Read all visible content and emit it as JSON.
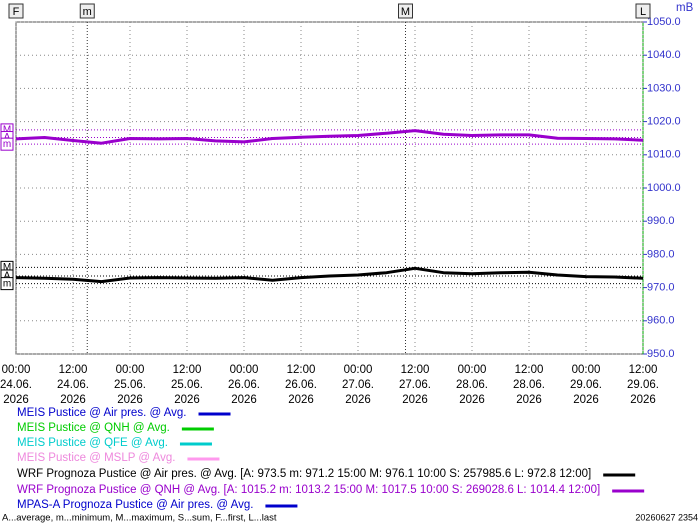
{
  "chart_data": {
    "type": "line",
    "y_unit": "mB",
    "ylim": [
      950,
      1050
    ],
    "yticks": [
      {
        "value": 950,
        "label": "950.0"
      },
      {
        "value": 960,
        "label": "960.0"
      },
      {
        "value": 970,
        "label": "970.0"
      },
      {
        "value": 980,
        "label": "980.0"
      },
      {
        "value": 990,
        "label": "990.0"
      },
      {
        "value": 1000,
        "label": "1000.0"
      },
      {
        "value": 1010,
        "label": "1010.0"
      },
      {
        "value": 1020,
        "label": "1020.0"
      },
      {
        "value": 1030,
        "label": "1030.0"
      },
      {
        "value": 1040,
        "label": "1040.0"
      },
      {
        "value": 1050,
        "label": "1050.0"
      }
    ],
    "grid": true,
    "xlim": [
      "24.06. 00:00",
      "29.06. 12:00"
    ],
    "xticks": [
      {
        "value": "24.06. 00:00",
        "label": [
          "00:00",
          "24.06.",
          "2026"
        ]
      },
      {
        "value": "24.06. 12:00",
        "label": [
          "12:00",
          "24.06.",
          "2026"
        ]
      },
      {
        "value": "25.06. 00:00",
        "label": [
          "00:00",
          "25.06.",
          "2026"
        ]
      },
      {
        "value": "25.06. 12:00",
        "label": [
          "12:00",
          "25.06.",
          "2026"
        ]
      },
      {
        "value": "26.06. 00:00",
        "label": [
          "00:00",
          "26.06.",
          "2026"
        ]
      },
      {
        "value": "26.06. 12:00",
        "label": [
          "12:00",
          "26.06.",
          "2026"
        ]
      },
      {
        "value": "27.06. 00:00",
        "label": [
          "00:00",
          "27.06.",
          "2026"
        ]
      },
      {
        "value": "27.06. 12:00",
        "label": [
          "12:00",
          "27.06.",
          "2026"
        ]
      },
      {
        "value": "28.06. 00:00",
        "label": [
          "00:00",
          "28.06.",
          "2026"
        ]
      },
      {
        "value": "28.06. 12:00",
        "label": [
          "12:00",
          "28.06.",
          "2026"
        ]
      },
      {
        "value": "29.06. 00:00",
        "label": [
          "00:00",
          "29.06.",
          "2026"
        ]
      },
      {
        "value": "29.06. 12:00",
        "label": [
          "12:00",
          "29.06.",
          "2026"
        ]
      }
    ],
    "x": [
      "24.06. 00:00",
      "24.06. 06:00",
      "24.06. 12:00",
      "24.06. 18:00",
      "25.06. 00:00",
      "25.06. 06:00",
      "25.06. 12:00",
      "25.06. 18:00",
      "26.06. 00:00",
      "26.06. 06:00",
      "26.06. 12:00",
      "26.06. 18:00",
      "27.06. 00:00",
      "27.06. 06:00",
      "27.06. 12:00",
      "27.06. 18:00",
      "28.06. 00:00",
      "28.06. 06:00",
      "28.06. 12:00",
      "28.06. 18:00",
      "29.06. 00:00",
      "29.06. 06:00",
      "29.06. 12:00"
    ],
    "top_markers": [
      {
        "label": "F",
        "time": "24.06. 00:00"
      },
      {
        "label": "m",
        "time": "24.06. 15:00"
      },
      {
        "label": "M",
        "time": "27.06. 10:00"
      },
      {
        "label": "L",
        "time": "29.06. 12:00"
      }
    ],
    "series": [
      {
        "name": "MEIS Pustice @ Air pres. @ Avg.",
        "color": "#0000cc",
        "values": [
          null,
          null,
          null,
          null,
          null,
          null,
          null,
          null,
          null,
          null,
          null,
          null,
          null,
          null,
          null,
          null,
          null,
          null,
          null,
          null,
          null,
          null,
          null
        ]
      },
      {
        "name": "MEIS Pustice @ QNH @ Avg.",
        "color": "#00cc00",
        "values": [
          null,
          null,
          null,
          null,
          null,
          null,
          null,
          null,
          null,
          null,
          null,
          null,
          null,
          null,
          null,
          null,
          null,
          null,
          null,
          null,
          null,
          null,
          null
        ]
      },
      {
        "name": "MEIS Pustice @ QFE @ Avg.",
        "color": "#00cccc",
        "values": [
          null,
          null,
          null,
          null,
          null,
          null,
          null,
          null,
          null,
          null,
          null,
          null,
          null,
          null,
          null,
          null,
          null,
          null,
          null,
          null,
          null,
          null,
          null
        ]
      },
      {
        "name": "MEIS Pustice @ MSLP @ Avg.",
        "color": "#ff99ee",
        "values": [
          null,
          null,
          null,
          null,
          null,
          null,
          null,
          null,
          null,
          null,
          null,
          null,
          null,
          null,
          null,
          null,
          null,
          null,
          null,
          null,
          null,
          null,
          null
        ]
      },
      {
        "name": "WRF Prognoza Pustice @ Air pres. @ Avg. [A: 973.5 m: 971.2 15:00 M: 976.1 10:00 S: 257985.6 L: 972.8 12:00]",
        "color": "#000000",
        "values": [
          973.0,
          972.8,
          972.5,
          971.8,
          972.9,
          973.0,
          972.9,
          972.8,
          973.0,
          972.2,
          973.0,
          973.5,
          973.8,
          974.5,
          975.8,
          974.5,
          974.2,
          974.5,
          974.6,
          973.8,
          973.3,
          973.2,
          972.8
        ],
        "markers": [
          {
            "label": "M",
            "value": 976.1
          },
          {
            "label": "A",
            "value": 973.5
          },
          {
            "label": "m",
            "value": 971.2
          }
        ]
      },
      {
        "name": "WRF Prognoza Pustice @ QNH @ Avg. [A: 1015.2 m: 1013.2 15:00 M: 1017.5 10:00 S: 269028.6 L: 1014.4 12:00]",
        "color": "#9900cc",
        "values": [
          1014.8,
          1015.2,
          1014.3,
          1013.5,
          1014.9,
          1014.8,
          1014.9,
          1014.2,
          1013.9,
          1014.9,
          1015.3,
          1015.6,
          1015.8,
          1016.5,
          1017.3,
          1016.2,
          1015.8,
          1016.0,
          1016.0,
          1015.0,
          1014.9,
          1014.8,
          1014.4
        ],
        "markers": [
          {
            "label": "M",
            "value": 1017.5
          },
          {
            "label": "A",
            "value": 1015.2
          },
          {
            "label": "m",
            "value": 1013.2
          }
        ]
      },
      {
        "name": "MPAS-A Prognoza Pustice @ Air pres. @ Avg.",
        "color": "#0000cc",
        "values": [
          null,
          null,
          null,
          null,
          null,
          null,
          null,
          null,
          null,
          null,
          null,
          null,
          null,
          null,
          null,
          null,
          null,
          null,
          null,
          null,
          null,
          null,
          null
        ]
      }
    ],
    "footer_note": "A...average, m...minimum, M...maximum, S...sum, F...first, L...last",
    "timestamp": "20260627 2354"
  }
}
